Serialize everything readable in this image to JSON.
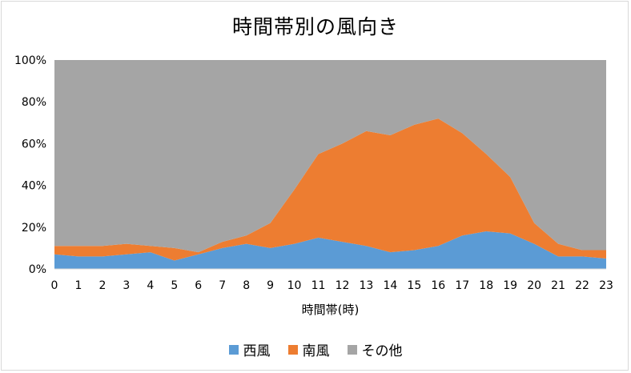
{
  "chart_data": {
    "type": "area",
    "stacked": "percent",
    "title": "時間帯別の風向き",
    "xlabel": "時間帯(時)",
    "ylabel": "",
    "categories": [
      "0",
      "1",
      "2",
      "3",
      "4",
      "5",
      "6",
      "7",
      "8",
      "9",
      "10",
      "11",
      "12",
      "13",
      "14",
      "15",
      "16",
      "17",
      "18",
      "19",
      "20",
      "21",
      "22",
      "23"
    ],
    "yticks": [
      "0%",
      "20%",
      "40%",
      "60%",
      "80%",
      "100%"
    ],
    "ylim": [
      0,
      100
    ],
    "grid": false,
    "legend_position": "bottom",
    "series": [
      {
        "name": "西風",
        "color": "#5b9bd5",
        "values": [
          7,
          6,
          6,
          7,
          8,
          4,
          7,
          10,
          12,
          10,
          12,
          15,
          13,
          11,
          8,
          9,
          11,
          16,
          18,
          17,
          12,
          6,
          6,
          5
        ]
      },
      {
        "name": "南風",
        "color": "#ed7d31",
        "values": [
          4,
          5,
          5,
          5,
          3,
          6,
          1,
          3,
          4,
          12,
          26,
          40,
          47,
          55,
          56,
          60,
          61,
          49,
          37,
          27,
          10,
          6,
          3,
          4
        ]
      },
      {
        "name": "その他",
        "color": "#a5a5a5",
        "values": [
          89,
          89,
          89,
          88,
          89,
          90,
          92,
          87,
          84,
          78,
          62,
          45,
          40,
          34,
          36,
          31,
          28,
          35,
          45,
          56,
          78,
          88,
          91,
          91
        ]
      }
    ]
  }
}
